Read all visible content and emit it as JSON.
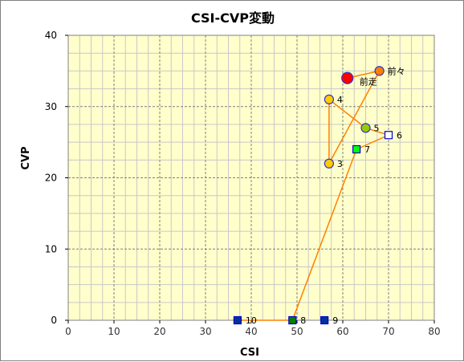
{
  "chart_data": {
    "type": "scatter",
    "title": "CSI-CVP変動",
    "xlabel": "CSI",
    "ylabel": "CVP",
    "xlim": [
      0,
      80
    ],
    "ylim": [
      0,
      40
    ],
    "x_ticks": [
      0,
      10,
      20,
      30,
      40,
      50,
      60,
      70,
      80
    ],
    "y_ticks": [
      0,
      10,
      20,
      30,
      40
    ],
    "grid": true,
    "colors": {
      "plot_bg": "#ffffcc",
      "grid_major": "#7f7f7f",
      "grid_minor": "#c8c8c8",
      "line": "#ff8000"
    },
    "points": [
      {
        "label": "前走",
        "x": 61,
        "y": 34,
        "marker": "circle-large",
        "fill": "#ff0000",
        "stroke": "#3333cc"
      },
      {
        "label": "前々",
        "x": 68,
        "y": 35,
        "marker": "circle",
        "fill": "#ff8000",
        "stroke": "#3333cc"
      },
      {
        "label": "3",
        "x": 57,
        "y": 22,
        "marker": "circle",
        "fill": "#ffcc00",
        "stroke": "#3333cc"
      },
      {
        "label": "4",
        "x": 57,
        "y": 31,
        "marker": "circle",
        "fill": "#ffcc00",
        "stroke": "#3333cc"
      },
      {
        "label": "5",
        "x": 65,
        "y": 27,
        "marker": "circle",
        "fill": "#99cc00",
        "stroke": "#3333cc"
      },
      {
        "label": "6",
        "x": 70,
        "y": 26,
        "marker": "square",
        "fill": "#ffffff",
        "stroke": "#0000cc"
      },
      {
        "label": "7",
        "x": 63,
        "y": 24,
        "marker": "square",
        "fill": "#00ff00",
        "stroke": "#0000cc"
      },
      {
        "label": "8",
        "x": 49,
        "y": 0,
        "marker": "square",
        "fill": "#008000",
        "stroke": "#0000cc"
      },
      {
        "label": "9",
        "x": 56,
        "y": 0,
        "marker": "square",
        "fill": "#003399",
        "stroke": "#0000cc"
      },
      {
        "label": "10",
        "x": 37,
        "y": 0,
        "marker": "square",
        "fill": "#003399",
        "stroke": "#0000cc"
      }
    ],
    "line_order": [
      "10",
      "8",
      "7",
      "6",
      "5",
      "4",
      "3",
      "前々",
      "前走"
    ]
  }
}
